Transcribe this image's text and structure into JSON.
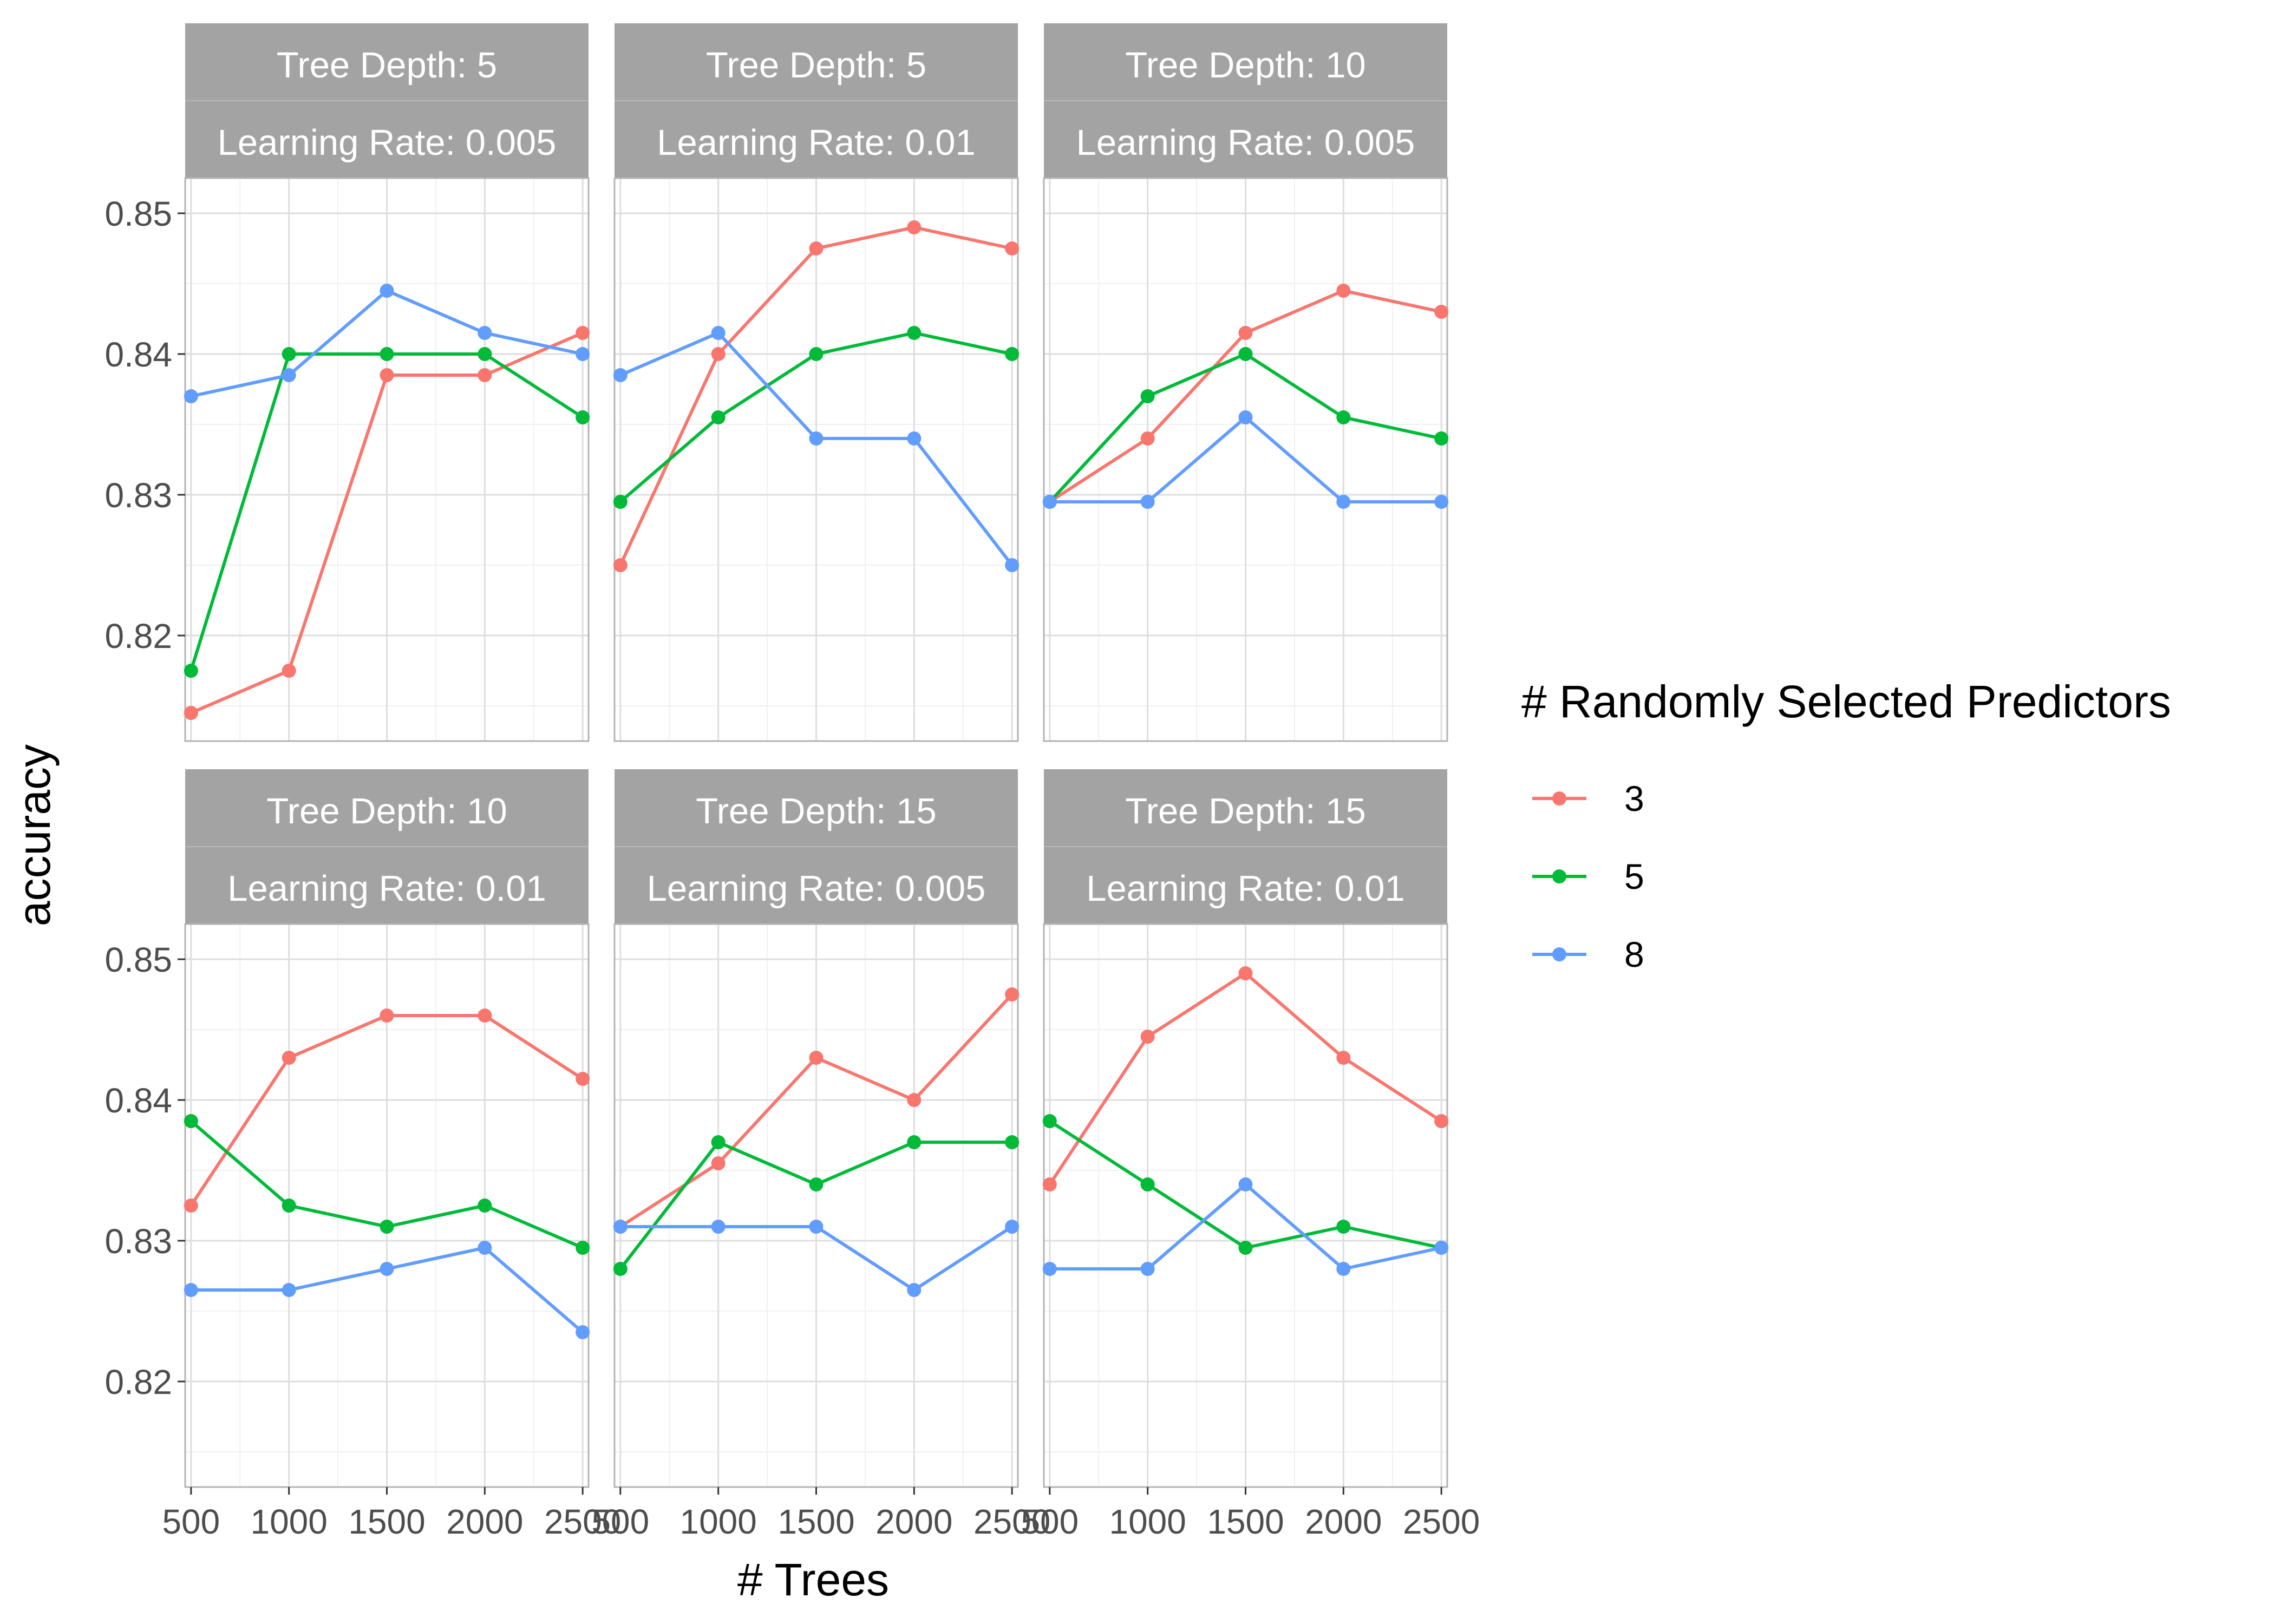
{
  "chart_data": {
    "type": "line",
    "xlabel": "# Trees",
    "ylabel": "accuracy",
    "x": [
      500,
      1000,
      1500,
      2000,
      2500
    ],
    "x_ticks": [
      "500",
      "1000",
      "1500",
      "2000",
      "2500"
    ],
    "ylim": [
      0.8125,
      0.8525
    ],
    "y_ticks": [
      "0.82",
      "0.83",
      "0.84",
      "0.85"
    ],
    "grid": true,
    "legend": {
      "title": "# Randomly Selected Predictors",
      "position": "right",
      "entries": [
        "3",
        "5",
        "8"
      ]
    },
    "colors": {
      "3": "#F8766D",
      "5": "#00BA38",
      "8": "#619CFF"
    },
    "strip_fill": "#A3A3A3",
    "panels": [
      {
        "strip_top": "Tree Depth: 5",
        "strip_bottom": "Learning Rate: 0.005",
        "series": [
          {
            "name": "3",
            "values": [
              0.8145,
              0.8175,
              0.8385,
              0.8385,
              0.8415
            ]
          },
          {
            "name": "5",
            "values": [
              0.8175,
              0.84,
              0.84,
              0.84,
              0.8355
            ]
          },
          {
            "name": "8",
            "values": [
              0.837,
              0.8385,
              0.8445,
              0.8415,
              0.84
            ]
          }
        ]
      },
      {
        "strip_top": "Tree Depth: 5",
        "strip_bottom": "Learning Rate: 0.01",
        "series": [
          {
            "name": "3",
            "values": [
              0.825,
              0.84,
              0.8475,
              0.849,
              0.8475
            ]
          },
          {
            "name": "5",
            "values": [
              0.8295,
              0.8355,
              0.84,
              0.8415,
              0.84
            ]
          },
          {
            "name": "8",
            "values": [
              0.8385,
              0.8415,
              0.834,
              0.834,
              0.825
            ]
          }
        ]
      },
      {
        "strip_top": "Tree Depth: 10",
        "strip_bottom": "Learning Rate: 0.005",
        "series": [
          {
            "name": "3",
            "values": [
              0.8295,
              0.834,
              0.8415,
              0.8445,
              0.843
            ]
          },
          {
            "name": "5",
            "values": [
              0.8295,
              0.837,
              0.84,
              0.8355,
              0.834
            ]
          },
          {
            "name": "8",
            "values": [
              0.8295,
              0.8295,
              0.8355,
              0.8295,
              0.8295
            ]
          }
        ]
      },
      {
        "strip_top": "Tree Depth: 10",
        "strip_bottom": "Learning Rate: 0.01",
        "series": [
          {
            "name": "3",
            "values": [
              0.8325,
              0.843,
              0.846,
              0.846,
              0.8415
            ]
          },
          {
            "name": "5",
            "values": [
              0.8385,
              0.8325,
              0.831,
              0.8325,
              0.8295
            ]
          },
          {
            "name": "8",
            "values": [
              0.8265,
              0.8265,
              0.828,
              0.8295,
              0.8235
            ]
          }
        ]
      },
      {
        "strip_top": "Tree Depth: 15",
        "strip_bottom": "Learning Rate: 0.005",
        "series": [
          {
            "name": "3",
            "values": [
              0.831,
              0.8355,
              0.843,
              0.84,
              0.8475
            ]
          },
          {
            "name": "5",
            "values": [
              0.828,
              0.837,
              0.834,
              0.837,
              0.837
            ]
          },
          {
            "name": "8",
            "values": [
              0.831,
              0.831,
              0.831,
              0.8265,
              0.831
            ]
          }
        ]
      },
      {
        "strip_top": "Tree Depth: 15",
        "strip_bottom": "Learning Rate: 0.01",
        "series": [
          {
            "name": "3",
            "values": [
              0.834,
              0.8445,
              0.849,
              0.843,
              0.8385
            ]
          },
          {
            "name": "5",
            "values": [
              0.8385,
              0.834,
              0.8295,
              0.831,
              0.8295
            ]
          },
          {
            "name": "8",
            "values": [
              0.828,
              0.828,
              0.834,
              0.828,
              0.8295
            ]
          }
        ]
      }
    ]
  }
}
